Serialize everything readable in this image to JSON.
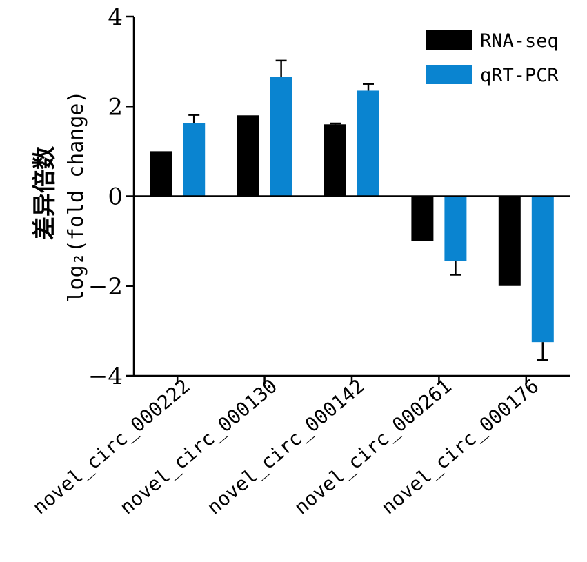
{
  "chart_data": {
    "type": "bar",
    "categories": [
      "novel_circ_000222",
      "novel_circ_000130",
      "novel_circ_000142",
      "novel_circ_000261",
      "novel_circ_000176"
    ],
    "series": [
      {
        "name": "RNA-seq",
        "color": "#000000",
        "values": [
          1.0,
          1.8,
          1.6,
          -1.0,
          -2.0
        ],
        "errors": [
          0,
          0,
          0.02,
          0,
          0
        ]
      },
      {
        "name": "qRT-PCR",
        "color": "#0a84d0",
        "values": [
          1.63,
          2.65,
          2.35,
          -1.45,
          -3.25
        ],
        "errors": [
          0.18,
          0.37,
          0.15,
          0.3,
          0.4
        ]
      }
    ],
    "ylabel_cn": "差异倍数",
    "ylabel": "log₂(fold change)",
    "ylim": [
      -4,
      4
    ],
    "yticks": [
      "4",
      "2",
      "0",
      "−2",
      "−4"
    ],
    "ytick_values": [
      4,
      2,
      0,
      -2,
      -4
    ],
    "legend_position": "top-right",
    "grid": false
  }
}
